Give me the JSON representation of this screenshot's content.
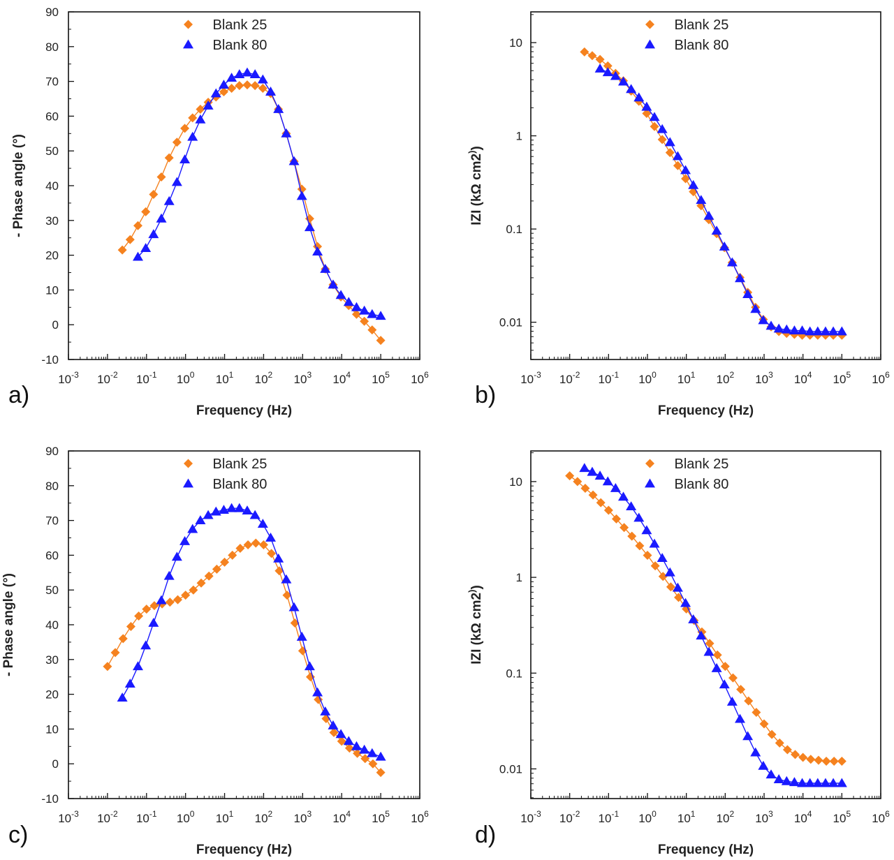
{
  "colors": {
    "blank25": "#f5821f",
    "blank80": "#1a1aff"
  },
  "chart_data": [
    {
      "panel": "a)",
      "type": "scatter",
      "xscale": "log",
      "yscale": "linear",
      "xlabel": "Frequency (Hz)",
      "ylabel": "- Phase angle (°)",
      "xlim_exp": [
        -3,
        6
      ],
      "ylim": [
        -10,
        90
      ],
      "xticks": [
        "10-3",
        "10-2",
        "10-1",
        "100",
        "101",
        "102",
        "103",
        "104",
        "105",
        "106"
      ],
      "yticks": [
        "-10",
        "0",
        "10",
        "20",
        "30",
        "40",
        "50",
        "60",
        "70",
        "80",
        "90"
      ],
      "legend": [
        "Blank 25",
        "Blank 80"
      ],
      "series": [
        {
          "name": "Blank 25",
          "marker": "diamond",
          "color": "#f5821f",
          "x": [
            -1.62,
            -1.42,
            -1.22,
            -1.02,
            -0.82,
            -0.62,
            -0.42,
            -0.22,
            -0.02,
            0.18,
            0.38,
            0.58,
            0.78,
            0.98,
            1.18,
            1.38,
            1.58,
            1.78,
            1.98,
            2.18,
            2.38,
            2.58,
            2.78,
            2.98,
            3.18,
            3.38,
            3.58,
            3.78,
            3.98,
            4.18,
            4.38,
            4.58,
            4.78,
            5.0
          ],
          "y": [
            21.5,
            24.5,
            28.5,
            32.5,
            37.5,
            42.5,
            48,
            52.5,
            56.5,
            59.5,
            62,
            64,
            65.5,
            67,
            68,
            68.8,
            69,
            68.8,
            68,
            66.5,
            62,
            55,
            47,
            39,
            30.5,
            22.5,
            16,
            11.5,
            8,
            5.5,
            3,
            1,
            -1.5,
            -4.5
          ]
        },
        {
          "name": "Blank 80",
          "marker": "triangle",
          "color": "#1a1aff",
          "x": [
            -1.22,
            -1.02,
            -0.82,
            -0.62,
            -0.42,
            -0.22,
            -0.02,
            0.18,
            0.38,
            0.58,
            0.78,
            0.98,
            1.18,
            1.38,
            1.58,
            1.78,
            1.98,
            2.18,
            2.38,
            2.58,
            2.78,
            2.98,
            3.18,
            3.38,
            3.58,
            3.78,
            3.98,
            4.18,
            4.38,
            4.58,
            4.78,
            5.0
          ],
          "y": [
            19.5,
            22,
            26,
            30.5,
            35.5,
            41,
            47.5,
            54,
            59,
            63,
            66.5,
            69,
            71,
            72,
            72.5,
            72,
            70.5,
            67,
            62,
            55,
            47,
            37,
            28,
            21,
            16,
            11.5,
            8.5,
            6.5,
            5,
            4,
            3,
            2.5
          ]
        }
      ]
    },
    {
      "panel": "b)",
      "type": "scatter",
      "xscale": "log",
      "yscale": "log",
      "xlabel": "Frequency (Hz)",
      "ylabel": "IZI (kΩ cm2)",
      "xlim_exp": [
        -3,
        6
      ],
      "ylim_exp": [
        -2.4,
        1.33
      ],
      "xticks": [
        "10-3",
        "10-2",
        "10-1",
        "100",
        "101",
        "102",
        "103",
        "104",
        "105",
        "106"
      ],
      "yticks": [
        "0.01",
        "0.1",
        "1",
        "10"
      ],
      "legend": [
        "Blank 25",
        "Blank 80"
      ],
      "series": [
        {
          "name": "Blank 25",
          "marker": "diamond",
          "color": "#f5821f",
          "x": [
            -1.62,
            -1.42,
            -1.22,
            -1.02,
            -0.82,
            -0.62,
            -0.42,
            -0.22,
            -0.02,
            0.18,
            0.38,
            0.58,
            0.78,
            0.98,
            1.18,
            1.38,
            1.58,
            1.78,
            1.98,
            2.18,
            2.38,
            2.58,
            2.78,
            2.98,
            3.18,
            3.38,
            3.58,
            3.78,
            3.98,
            4.18,
            4.38,
            4.58,
            4.78,
            5.0
          ],
          "y": [
            0.9,
            0.86,
            0.82,
            0.75,
            0.67,
            0.59,
            0.48,
            0.37,
            0.24,
            0.1,
            -0.04,
            -0.18,
            -0.32,
            -0.46,
            -0.6,
            -0.75,
            -0.9,
            -1.05,
            -1.2,
            -1.36,
            -1.52,
            -1.68,
            -1.84,
            -1.97,
            -2.05,
            -2.1,
            -2.12,
            -2.13,
            -2.14,
            -2.14,
            -2.14,
            -2.14,
            -2.14,
            -2.14
          ]
        },
        {
          "name": "Blank 80",
          "marker": "triangle",
          "color": "#1a1aff",
          "x": [
            -1.22,
            -1.02,
            -0.82,
            -0.62,
            -0.42,
            -0.22,
            -0.02,
            0.18,
            0.38,
            0.58,
            0.78,
            0.98,
            1.18,
            1.38,
            1.58,
            1.78,
            1.98,
            2.18,
            2.38,
            2.58,
            2.78,
            2.98,
            3.18,
            3.38,
            3.58,
            3.78,
            3.98,
            4.18,
            4.38,
            4.58,
            4.78,
            5.0
          ],
          "y": [
            0.72,
            0.68,
            0.64,
            0.58,
            0.5,
            0.41,
            0.31,
            0.2,
            0.07,
            -0.07,
            -0.22,
            -0.37,
            -0.53,
            -0.69,
            -0.86,
            -1.02,
            -1.19,
            -1.36,
            -1.53,
            -1.7,
            -1.86,
            -1.98,
            -2.04,
            -2.07,
            -2.08,
            -2.09,
            -2.09,
            -2.1,
            -2.1,
            -2.1,
            -2.1,
            -2.1
          ]
        }
      ]
    },
    {
      "panel": "c)",
      "type": "scatter",
      "xscale": "log",
      "yscale": "linear",
      "xlabel": "Frequency (Hz)",
      "ylabel": "- Phase angle (°)",
      "xlim_exp": [
        -3,
        6
      ],
      "ylim": [
        -10,
        90
      ],
      "xticks": [
        "10-3",
        "10-2",
        "10-1",
        "100",
        "101",
        "102",
        "103",
        "104",
        "105",
        "106"
      ],
      "yticks": [
        "-10",
        "0",
        "10",
        "20",
        "30",
        "40",
        "50",
        "60",
        "70",
        "80",
        "90"
      ],
      "legend": [
        "Blank 25",
        "Blank 80"
      ],
      "series": [
        {
          "name": "Blank 25",
          "marker": "diamond",
          "color": "#f5821f",
          "x": [
            -2.0,
            -1.8,
            -1.6,
            -1.4,
            -1.2,
            -1.0,
            -0.8,
            -0.6,
            -0.4,
            -0.2,
            0.0,
            0.2,
            0.4,
            0.6,
            0.8,
            1.0,
            1.2,
            1.4,
            1.6,
            1.8,
            2.0,
            2.2,
            2.4,
            2.6,
            2.8,
            3.0,
            3.2,
            3.4,
            3.6,
            3.8,
            4.0,
            4.2,
            4.4,
            4.6,
            4.8,
            5.0
          ],
          "y": [
            28,
            32,
            36,
            39.5,
            42.5,
            44.5,
            45.5,
            46,
            46.5,
            47.2,
            48.5,
            50,
            52,
            54,
            56,
            58,
            60,
            62,
            63,
            63.5,
            63,
            60.5,
            55.5,
            48.5,
            40.5,
            32.5,
            25,
            18.5,
            13,
            9,
            6.5,
            4.5,
            3,
            1.5,
            0,
            -2.5
          ]
        },
        {
          "name": "Blank 80",
          "marker": "triangle",
          "color": "#1a1aff",
          "x": [
            -1.62,
            -1.42,
            -1.22,
            -1.02,
            -0.82,
            -0.62,
            -0.42,
            -0.22,
            -0.02,
            0.18,
            0.38,
            0.58,
            0.78,
            0.98,
            1.18,
            1.38,
            1.58,
            1.78,
            1.98,
            2.18,
            2.38,
            2.58,
            2.78,
            2.98,
            3.18,
            3.38,
            3.58,
            3.78,
            3.98,
            4.18,
            4.38,
            4.58,
            4.78,
            5.0
          ],
          "y": [
            19,
            23,
            28,
            34,
            40.5,
            47,
            54,
            59.5,
            64,
            67.5,
            70,
            71.5,
            72.5,
            73,
            73.5,
            73.5,
            72.8,
            71.5,
            69,
            65,
            59,
            53,
            45,
            36.5,
            28,
            20.5,
            15,
            11,
            8.5,
            6.5,
            5,
            4,
            3,
            2
          ]
        }
      ]
    },
    {
      "panel": "d)",
      "type": "scatter",
      "xscale": "log",
      "yscale": "log",
      "xlabel": "Frequency (Hz)",
      "ylabel": "IZI (kΩ cm2)",
      "xlim_exp": [
        -3,
        6
      ],
      "ylim_exp": [
        -2.31,
        1.32
      ],
      "xticks": [
        "10-3",
        "10-2",
        "10-1",
        "100",
        "101",
        "102",
        "103",
        "104",
        "105",
        "106"
      ],
      "yticks": [
        "0.01",
        "0.1",
        "1",
        "10"
      ],
      "legend": [
        "Blank 25",
        "Blank 80"
      ],
      "series": [
        {
          "name": "Blank 25",
          "marker": "diamond",
          "color": "#f5821f",
          "x": [
            -2.0,
            -1.8,
            -1.6,
            -1.4,
            -1.2,
            -1.0,
            -0.8,
            -0.6,
            -0.4,
            -0.2,
            0.0,
            0.2,
            0.4,
            0.6,
            0.8,
            1.0,
            1.2,
            1.4,
            1.6,
            1.8,
            2.0,
            2.2,
            2.4,
            2.6,
            2.8,
            3.0,
            3.2,
            3.4,
            3.6,
            3.8,
            4.0,
            4.2,
            4.4,
            4.6,
            4.8,
            5.0
          ],
          "y": [
            1.06,
            1.0,
            0.93,
            0.86,
            0.78,
            0.7,
            0.61,
            0.52,
            0.43,
            0.33,
            0.23,
            0.12,
            0.01,
            -0.1,
            -0.21,
            -0.33,
            -0.45,
            -0.57,
            -0.69,
            -0.81,
            -0.93,
            -1.05,
            -1.17,
            -1.29,
            -1.41,
            -1.53,
            -1.64,
            -1.73,
            -1.8,
            -1.85,
            -1.88,
            -1.9,
            -1.91,
            -1.92,
            -1.92,
            -1.92
          ]
        },
        {
          "name": "Blank 80",
          "marker": "triangle",
          "color": "#1a1aff",
          "x": [
            -1.62,
            -1.42,
            -1.22,
            -1.02,
            -0.82,
            -0.62,
            -0.42,
            -0.22,
            -0.02,
            0.18,
            0.38,
            0.58,
            0.78,
            0.98,
            1.18,
            1.38,
            1.58,
            1.78,
            1.98,
            2.18,
            2.38,
            2.58,
            2.78,
            2.98,
            3.18,
            3.38,
            3.58,
            3.78,
            3.98,
            4.18,
            4.38,
            4.58,
            4.78,
            5.0
          ],
          "y": [
            1.14,
            1.1,
            1.06,
            1.0,
            0.93,
            0.84,
            0.74,
            0.62,
            0.49,
            0.35,
            0.2,
            0.05,
            -0.11,
            -0.27,
            -0.44,
            -0.61,
            -0.78,
            -0.95,
            -1.12,
            -1.3,
            -1.48,
            -1.66,
            -1.83,
            -1.97,
            -2.06,
            -2.11,
            -2.13,
            -2.14,
            -2.15,
            -2.15,
            -2.15,
            -2.15,
            -2.15,
            -2.15
          ]
        }
      ]
    }
  ]
}
